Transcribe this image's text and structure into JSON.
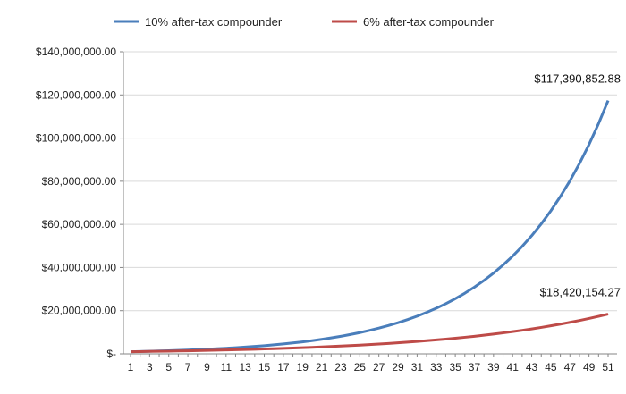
{
  "chart_data": {
    "type": "line",
    "xlabel": "",
    "ylabel": "",
    "x": [
      1,
      2,
      3,
      4,
      5,
      6,
      7,
      8,
      9,
      10,
      11,
      12,
      13,
      14,
      15,
      16,
      17,
      18,
      19,
      20,
      21,
      22,
      23,
      24,
      25,
      26,
      27,
      28,
      29,
      30,
      31,
      32,
      33,
      34,
      35,
      36,
      37,
      38,
      39,
      40,
      41,
      42,
      43,
      44,
      45,
      46,
      47,
      48,
      49,
      50,
      51
    ],
    "x_tick_labels": [
      "1",
      "3",
      "5",
      "7",
      "9",
      "11",
      "13",
      "15",
      "17",
      "19",
      "21",
      "23",
      "25",
      "27",
      "29",
      "31",
      "33",
      "35",
      "37",
      "39",
      "41",
      "43",
      "45",
      "47",
      "49",
      "51"
    ],
    "ylim": [
      0,
      140000000
    ],
    "y_ticks": [
      0,
      20000000,
      40000000,
      60000000,
      80000000,
      100000000,
      120000000,
      140000000
    ],
    "y_tick_labels": [
      "$-",
      "$20,000,000.00",
      "$40,000,000.00",
      "$60,000,000.00",
      "$80,000,000.00",
      "$100,000,000.00",
      "$120,000,000.00",
      "$140,000,000.00"
    ],
    "grid": "horizontal",
    "legend_position": "top",
    "series": [
      {
        "name": "10% after-tax compounder",
        "color": "#4a7ebb",
        "start_value": 1000000,
        "rate": 0.1,
        "end_label": "$117,390,852.88"
      },
      {
        "name": "6% after-tax compounder",
        "color": "#be4b48",
        "start_value": 1000000,
        "rate": 0.06,
        "end_label": "$18,420,154.27"
      }
    ]
  }
}
